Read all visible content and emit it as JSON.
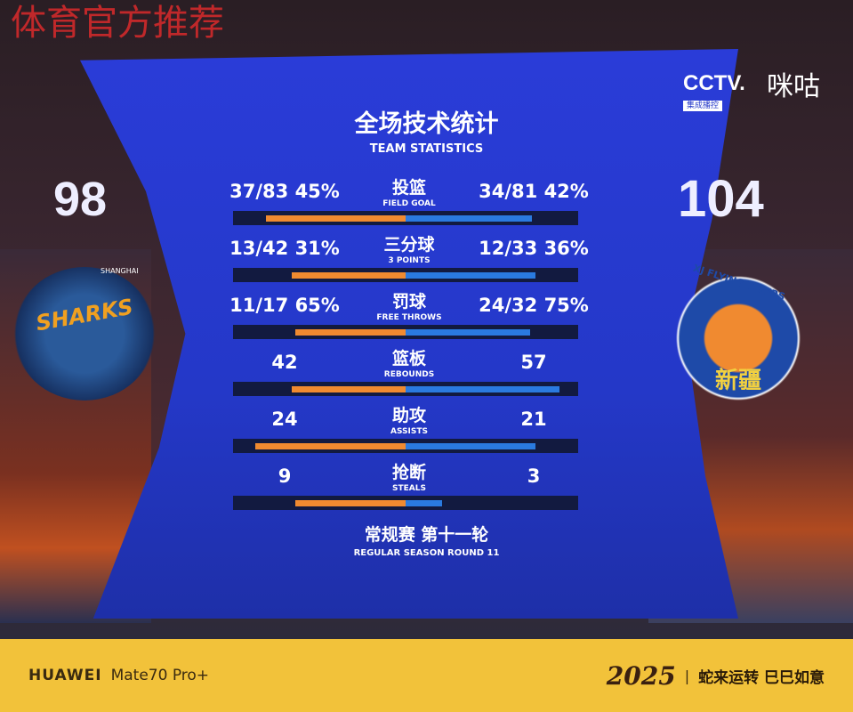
{
  "watermark": "体育官方推荐",
  "broadcaster": {
    "logo": "CCTV.",
    "sub": "集成播控",
    "partner": "咪咕"
  },
  "scoreboard": {
    "home_score": "98",
    "away_score": "104",
    "home_logo_text": "SHARKS",
    "home_logo_sub": "SHANGHAI",
    "away_logo_text": "XJ FLYING TIGERS",
    "away_logo_sub": "新疆"
  },
  "header": {
    "title": "全场技术统计",
    "subtitle": "TEAM STATISTICS"
  },
  "stats": [
    {
      "cn": "投篮",
      "en": "FIELD GOAL",
      "home": "37/83  45%",
      "away": "34/81  42%",
      "home_fill": 0.81,
      "away_fill": 0.73
    },
    {
      "cn": "三分球",
      "en": "3 POINTS",
      "home": "13/42  31%",
      "away": "12/33  36%",
      "home_fill": 0.66,
      "away_fill": 0.75
    },
    {
      "cn": "罚球",
      "en": "FREE THROWS",
      "home": "11/17  65%",
      "away": "24/32  75%",
      "home_fill": 0.64,
      "away_fill": 0.72
    },
    {
      "cn": "篮板",
      "en": "REBOUNDS",
      "home": "42",
      "away": "57",
      "home_fill": 0.66,
      "away_fill": 0.89
    },
    {
      "cn": "助攻",
      "en": "ASSISTS",
      "home": "24",
      "away": "21",
      "home_fill": 0.87,
      "away_fill": 0.75
    },
    {
      "cn": "抢断",
      "en": "STEALS",
      "home": "9",
      "away": "3",
      "home_fill": 0.64,
      "away_fill": 0.21
    }
  ],
  "footer_game": {
    "cn": "常规赛 第十一轮",
    "en": "REGULAR SEASON ROUND 11"
  },
  "phone_watermark": {
    "brand": "HUAWEI",
    "model": "Mate70 Pro+",
    "year": "2025",
    "slogan": "蛇来运转  巳巳如意"
  },
  "colors": {
    "home": "#f08a30",
    "away": "#2a7ae0",
    "panel": "#2438c8",
    "footer": "#f2c23a"
  }
}
